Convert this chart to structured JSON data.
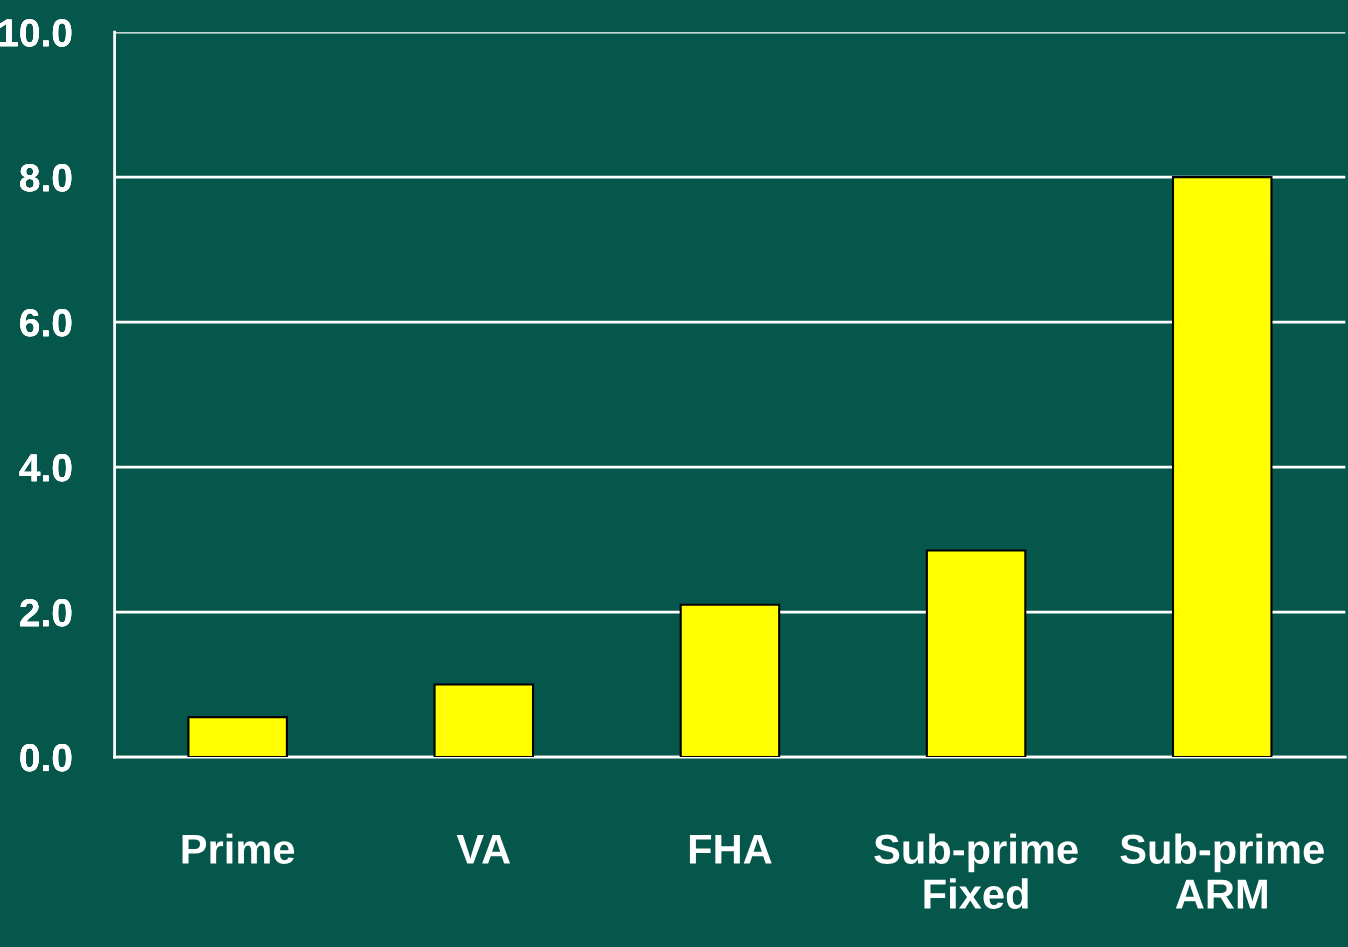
{
  "chart_data": {
    "type": "bar",
    "categories": [
      "Prime",
      "VA",
      "FHA",
      "Sub-prime Fixed",
      "Sub-prime ARM"
    ],
    "values": [
      0.55,
      1.0,
      2.1,
      2.85,
      8.0
    ],
    "color": "#ffff00",
    "ylim": [
      0,
      10
    ],
    "yticks": [
      {
        "value": 0,
        "label": "0.0"
      },
      {
        "value": 2,
        "label": "2.0"
      },
      {
        "value": 4,
        "label": "4.0"
      },
      {
        "value": 6,
        "label": "6.0"
      },
      {
        "value": 8,
        "label": "8.0"
      },
      {
        "value": 10,
        "label": "10.0"
      }
    ],
    "grid": "y"
  }
}
